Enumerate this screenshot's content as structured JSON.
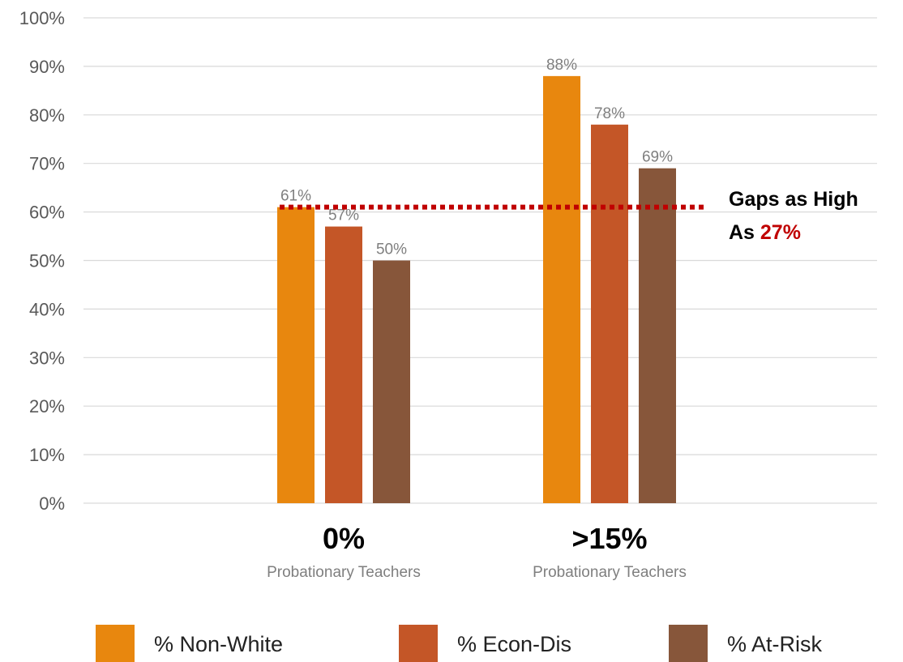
{
  "chart_data": {
    "type": "bar",
    "categories": [
      "0%",
      ">15%"
    ],
    "category_sublabels": [
      "Probationary Teachers",
      "Probationary Teachers"
    ],
    "series": [
      {
        "name": "% Non-White",
        "values": [
          61,
          88
        ],
        "color": "#E8870E"
      },
      {
        "name": "% Econ-Dis",
        "values": [
          57,
          78
        ],
        "color": "#C45627"
      },
      {
        "name": "% At-Risk",
        "values": [
          50,
          69
        ],
        "color": "#87563A"
      }
    ],
    "data_labels": [
      [
        "61%",
        "88%"
      ],
      [
        "57%",
        "78%"
      ],
      [
        "50%",
        "69%"
      ]
    ],
    "ylim": [
      0,
      100
    ],
    "y_ticks": [
      "0%",
      "10%",
      "20%",
      "30%",
      "40%",
      "50%",
      "60%",
      "70%",
      "80%",
      "90%",
      "100%"
    ],
    "grid": true,
    "legend_position": "bottom",
    "reference_line": {
      "value": 61,
      "style": "dotted",
      "color": "#C00000"
    },
    "annotation": {
      "line1": "Gaps as High",
      "line2_prefix": "As ",
      "line2_highlight": "27%",
      "highlight_color": "#C00000"
    }
  }
}
